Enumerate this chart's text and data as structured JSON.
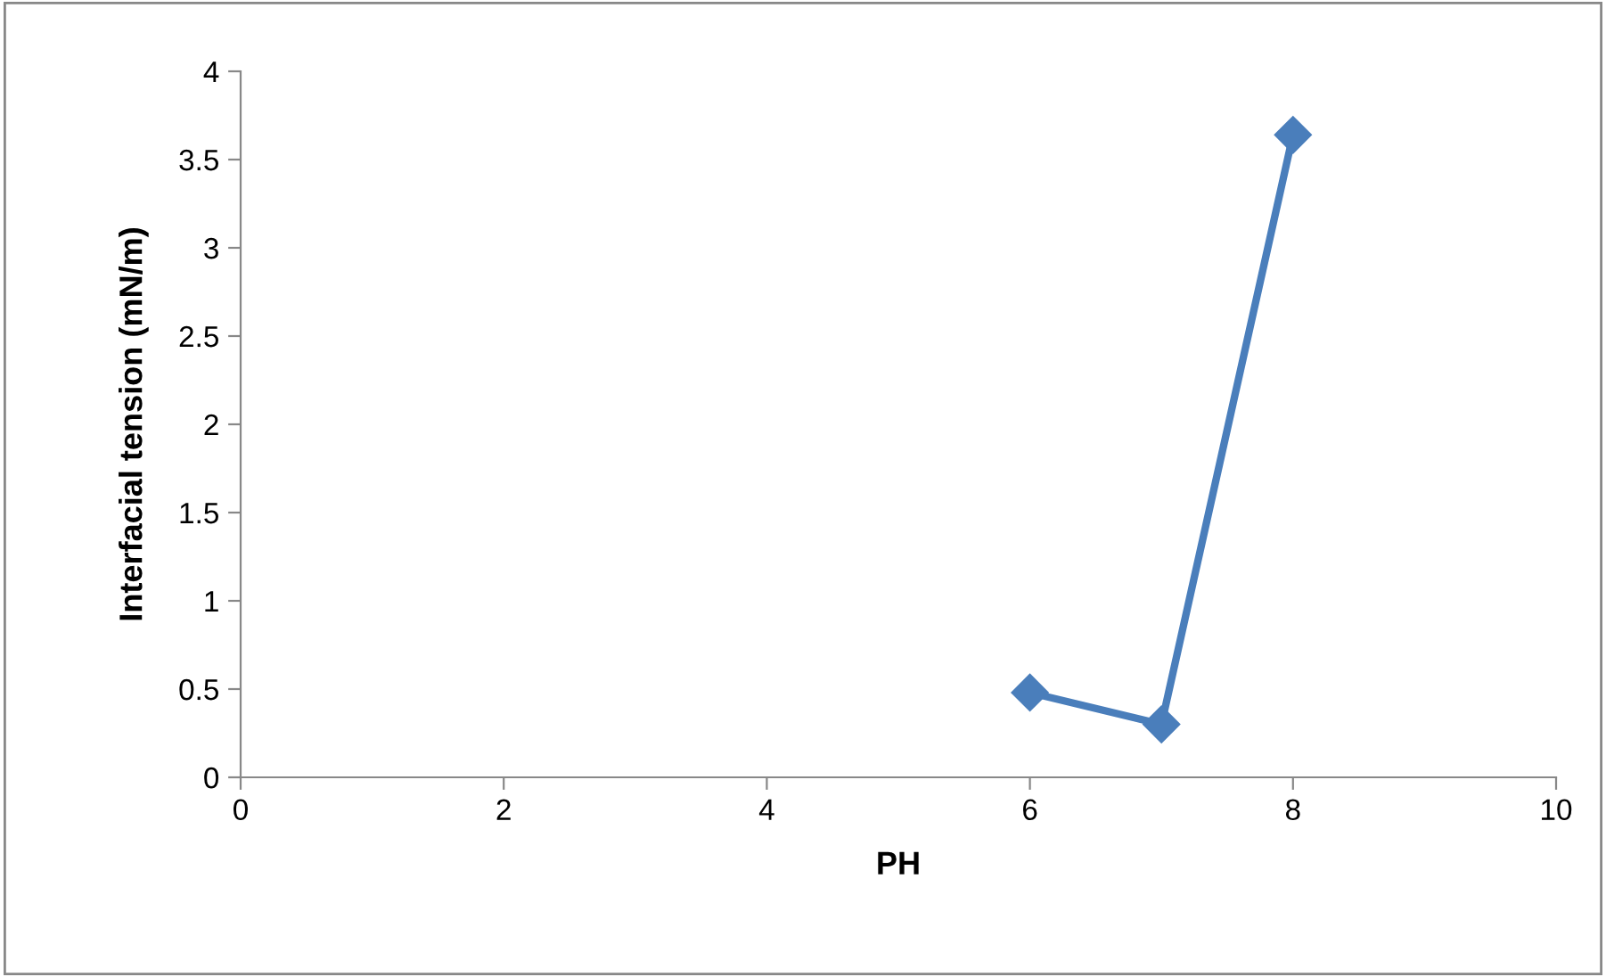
{
  "chart_data": {
    "type": "line",
    "xlabel": "PH",
    "ylabel": "Interfacial tension (mN/m)",
    "x": [
      6,
      7,
      8
    ],
    "series": [
      {
        "color": "#4a7ebb",
        "values": [
          0.48,
          0.3,
          3.64
        ]
      }
    ],
    "xlim": [
      0,
      10
    ],
    "xticks": [
      0,
      2,
      4,
      6,
      8,
      10
    ],
    "ylim": [
      0,
      4
    ],
    "yticks": [
      0,
      0.5,
      1,
      1.5,
      2,
      2.5,
      3,
      3.5,
      4
    ],
    "marker": "diamond",
    "line_style": "solid",
    "grid": false,
    "legend": false
  }
}
